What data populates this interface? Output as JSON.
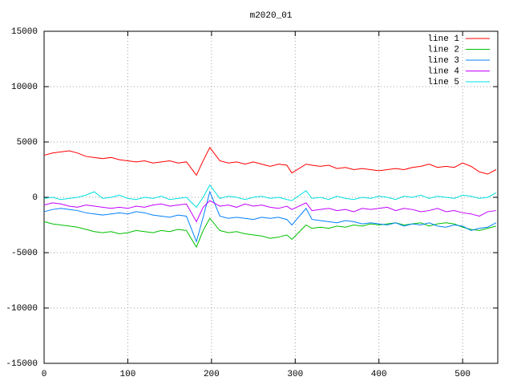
{
  "chart_data": {
    "type": "line",
    "title": "m2020_01",
    "x": [
      0,
      10,
      20,
      30,
      40,
      50,
      60,
      70,
      80,
      90,
      100,
      110,
      120,
      130,
      140,
      150,
      160,
      170,
      182,
      190,
      198,
      210,
      220,
      230,
      240,
      250,
      260,
      270,
      280,
      290,
      296,
      313,
      320,
      330,
      340,
      350,
      360,
      370,
      380,
      390,
      400,
      410,
      420,
      430,
      440,
      450,
      460,
      470,
      480,
      490,
      500,
      510,
      520,
      530,
      540
    ],
    "xlim": [
      0,
      542
    ],
    "xticks": [
      0,
      100,
      200,
      300,
      400,
      500
    ],
    "ylim": [
      -15000,
      15000
    ],
    "yticks": [
      -15000,
      -10000,
      -5000,
      0,
      5000,
      10000,
      15000
    ],
    "grid": true,
    "legend": "top-right",
    "series": [
      {
        "name": "line 1",
        "color": "#ff0000",
        "values": [
          3800,
          4000,
          4100,
          4200,
          4000,
          3700,
          3600,
          3500,
          3600,
          3400,
          3300,
          3200,
          3300,
          3100,
          3200,
          3300,
          3100,
          3200,
          2000,
          3300,
          4500,
          3300,
          3100,
          3200,
          3000,
          3200,
          3000,
          2800,
          3000,
          2900,
          2200,
          3000,
          2900,
          2800,
          2900,
          2600,
          2700,
          2500,
          2600,
          2500,
          2400,
          2500,
          2600,
          2500,
          2700,
          2800,
          3000,
          2700,
          2800,
          2700,
          3100,
          2800,
          2300,
          2100,
          2500
        ]
      },
      {
        "name": "line 2",
        "color": "#00c000",
        "values": [
          -2200,
          -2400,
          -2500,
          -2600,
          -2700,
          -2900,
          -3100,
          -3200,
          -3100,
          -3300,
          -3200,
          -3000,
          -3100,
          -3200,
          -3000,
          -3100,
          -2900,
          -3000,
          -4500,
          -3000,
          -1900,
          -3000,
          -3200,
          -3100,
          -3300,
          -3400,
          -3500,
          -3700,
          -3600,
          -3400,
          -3800,
          -2500,
          -2800,
          -2700,
          -2800,
          -2600,
          -2700,
          -2500,
          -2600,
          -2400,
          -2500,
          -2400,
          -2300,
          -2500,
          -2400,
          -2300,
          -2600,
          -2400,
          -2300,
          -2400,
          -2700,
          -2900,
          -3000,
          -2800,
          -2600
        ]
      },
      {
        "name": "line 3",
        "color": "#0080ff",
        "values": [
          -1300,
          -1100,
          -1000,
          -1100,
          -1200,
          -1400,
          -1500,
          -1600,
          -1500,
          -1400,
          -1500,
          -1300,
          -1400,
          -1600,
          -1700,
          -1800,
          -1600,
          -1700,
          -4000,
          -1800,
          500,
          -1700,
          -1900,
          -1800,
          -1900,
          -2000,
          -1800,
          -1900,
          -1800,
          -2000,
          -2500,
          -1000,
          -2000,
          -2100,
          -2200,
          -2300,
          -2100,
          -2200,
          -2400,
          -2300,
          -2400,
          -2500,
          -2300,
          -2600,
          -2400,
          -2500,
          -2300,
          -2600,
          -2700,
          -2500,
          -2600,
          -3000,
          -2800,
          -2700,
          -2300
        ]
      },
      {
        "name": "line 4",
        "color": "#c000ff",
        "values": [
          -700,
          -500,
          -600,
          -800,
          -900,
          -700,
          -800,
          -900,
          -1000,
          -900,
          -1000,
          -800,
          -900,
          -700,
          -600,
          -800,
          -700,
          -600,
          -2200,
          -900,
          -300,
          -800,
          -700,
          -900,
          -600,
          -800,
          -700,
          -900,
          -1000,
          -800,
          -1100,
          -500,
          -1200,
          -1100,
          -1000,
          -1200,
          -1100,
          -1300,
          -1000,
          -1100,
          -1000,
          -900,
          -1200,
          -1000,
          -1100,
          -1300,
          -1200,
          -1000,
          -1300,
          -1200,
          -1400,
          -1500,
          -1700,
          -1300,
          -1200
        ]
      },
      {
        "name": "line 5",
        "color": "#00e0e0",
        "values": [
          -100,
          0,
          -200,
          -100,
          0,
          200,
          500,
          -100,
          0,
          200,
          -100,
          -200,
          0,
          -100,
          100,
          -200,
          -100,
          0,
          -900,
          0,
          1100,
          -100,
          100,
          0,
          -200,
          0,
          100,
          -100,
          0,
          -200,
          -300,
          600,
          -100,
          0,
          -200,
          100,
          -100,
          -200,
          0,
          -100,
          100,
          0,
          -200,
          100,
          0,
          200,
          -100,
          100,
          0,
          -100,
          200,
          100,
          -100,
          0,
          400
        ]
      }
    ]
  }
}
